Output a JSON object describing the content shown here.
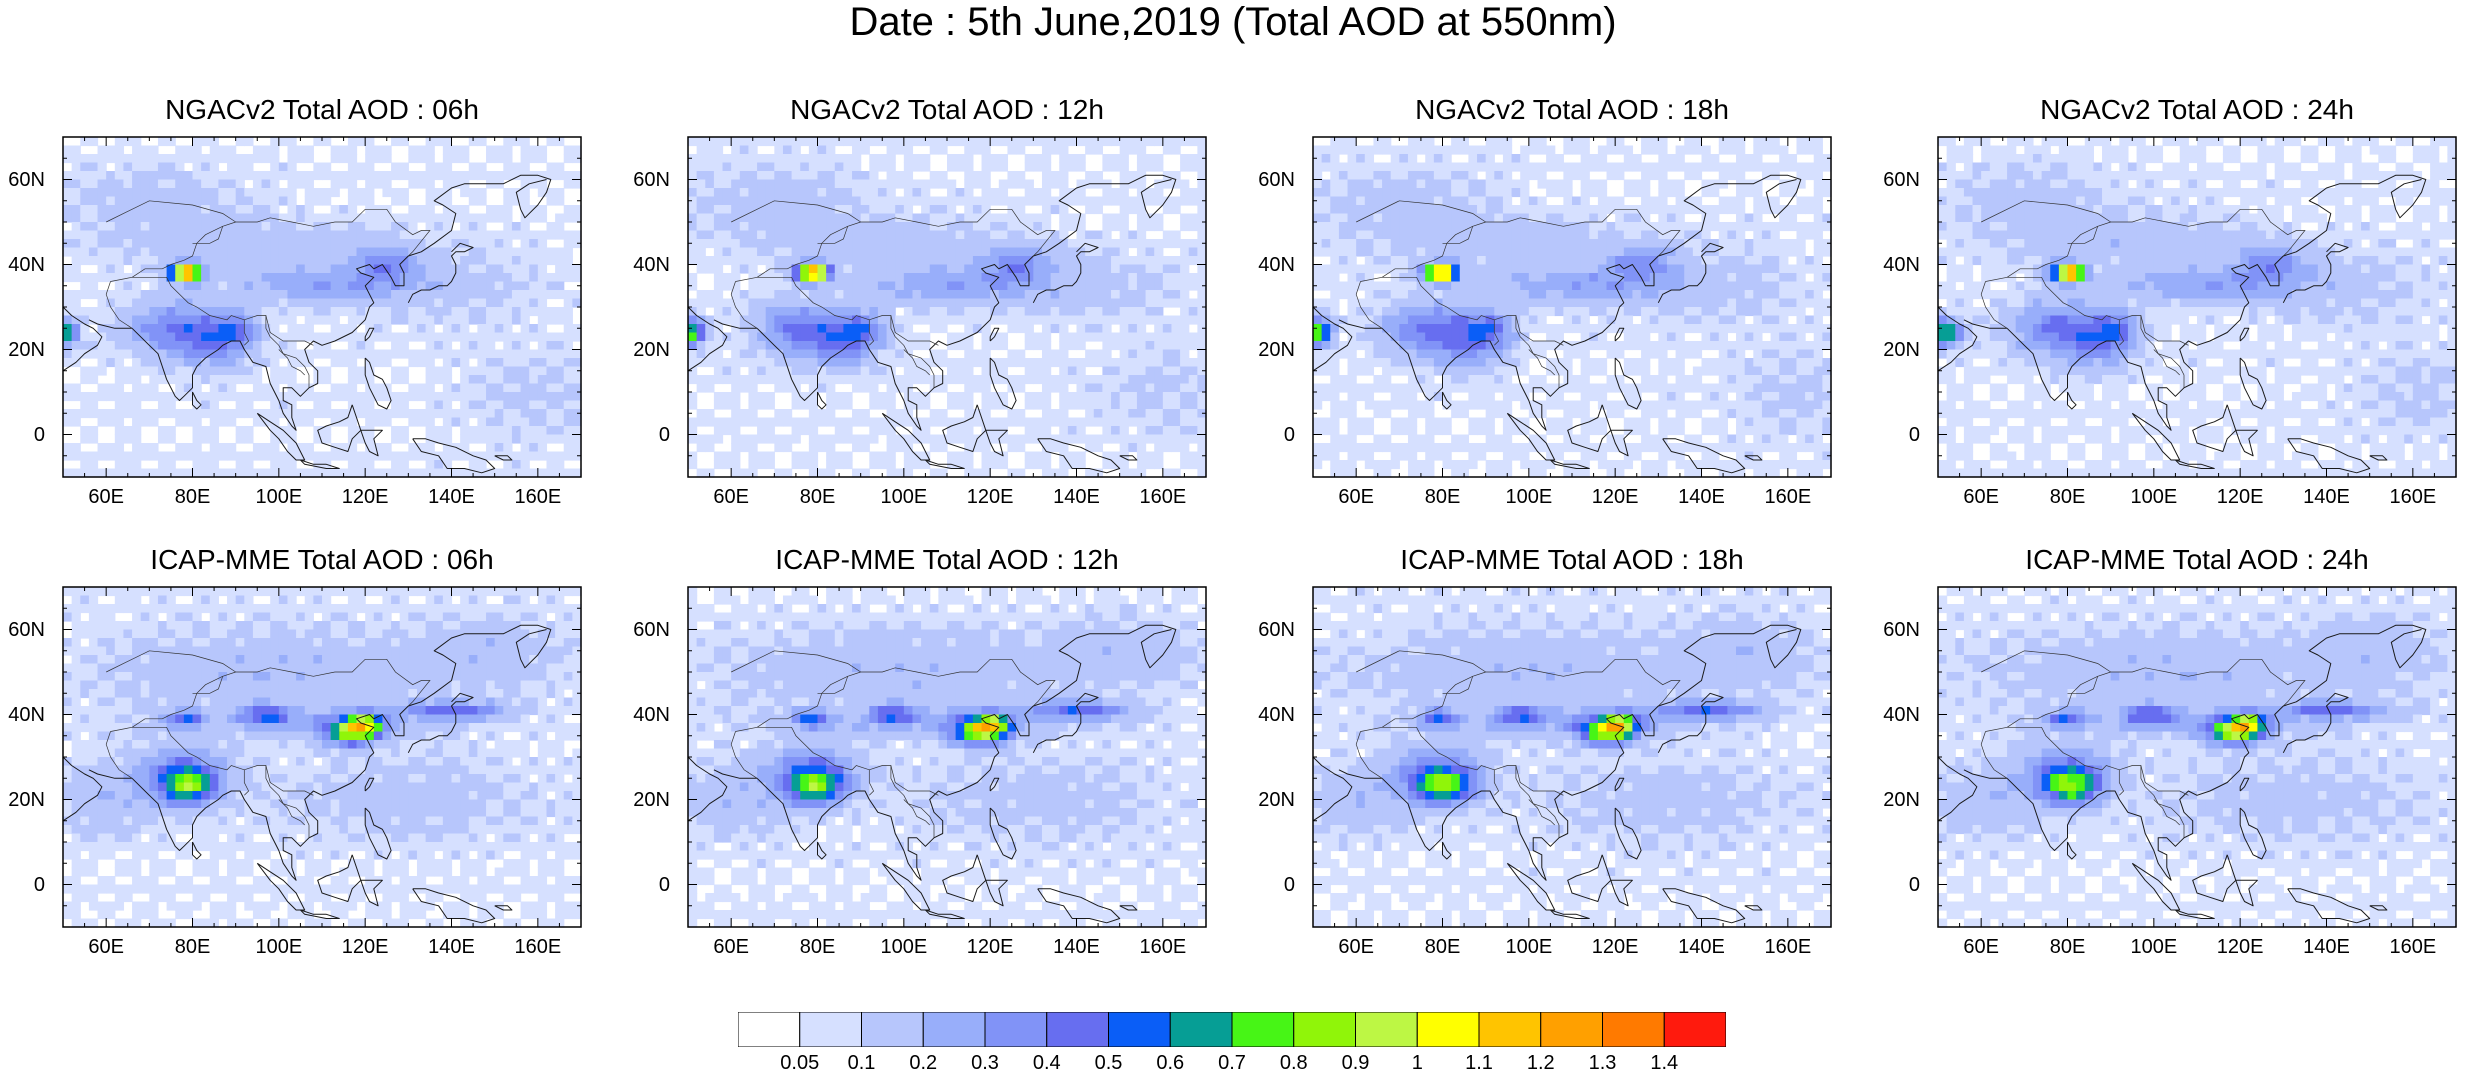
{
  "title": "Date : 5th June,2019 (Total AOD at 550nm)",
  "map_grid": {
    "lon_range": [
      50,
      170
    ],
    "lat_range": [
      -10,
      70
    ],
    "lat_ticks": [
      {
        "value": 60,
        "label": "60N"
      },
      {
        "value": 40,
        "label": "40N"
      },
      {
        "value": 20,
        "label": "20N"
      },
      {
        "value": 0,
        "label": "0"
      }
    ],
    "lon_ticks": [
      {
        "value": 60,
        "label": "60E"
      },
      {
        "value": 80,
        "label": "80E"
      },
      {
        "value": 100,
        "label": "100E"
      },
      {
        "value": 120,
        "label": "120E"
      },
      {
        "value": 140,
        "label": "140E"
      },
      {
        "value": 160,
        "label": "160E"
      }
    ]
  },
  "panels": [
    {
      "title": "NGACv2 Total AOD : 06h",
      "model": "NGACv2",
      "lead_time": "06h"
    },
    {
      "title": "NGACv2 Total AOD : 12h",
      "model": "NGACv2",
      "lead_time": "12h"
    },
    {
      "title": "NGACv2 Total AOD : 18h",
      "model": "NGACv2",
      "lead_time": "18h"
    },
    {
      "title": "NGACv2 Total AOD : 24h",
      "model": "NGACv2",
      "lead_time": "24h"
    },
    {
      "title": "ICAP-MME Total AOD : 06h",
      "model": "ICAP-MME",
      "lead_time": "06h"
    },
    {
      "title": "ICAP-MME Total AOD : 12h",
      "model": "ICAP-MME",
      "lead_time": "12h"
    },
    {
      "title": "ICAP-MME Total AOD : 18h",
      "model": "ICAP-MME",
      "lead_time": "18h"
    },
    {
      "title": "ICAP-MME Total AOD : 24h",
      "model": "ICAP-MME",
      "lead_time": "24h"
    }
  ],
  "colorbar": {
    "labels": [
      "0.05",
      "0.1",
      "0.2",
      "0.3",
      "0.4",
      "0.5",
      "0.6",
      "0.7",
      "0.8",
      "0.9",
      "1",
      "1.1",
      "1.2",
      "1.3",
      "1.4"
    ],
    "colors": [
      "#ffffff",
      "#d6e0ff",
      "#b7c6fc",
      "#98aefa",
      "#8193f7",
      "#676ef0",
      "#0a5ef7",
      "#069e95",
      "#47f516",
      "#90f509",
      "#bdf744",
      "#ffff00",
      "#ffc400",
      "#ffa000",
      "#ff7a00",
      "#ff1a0d"
    ]
  }
}
